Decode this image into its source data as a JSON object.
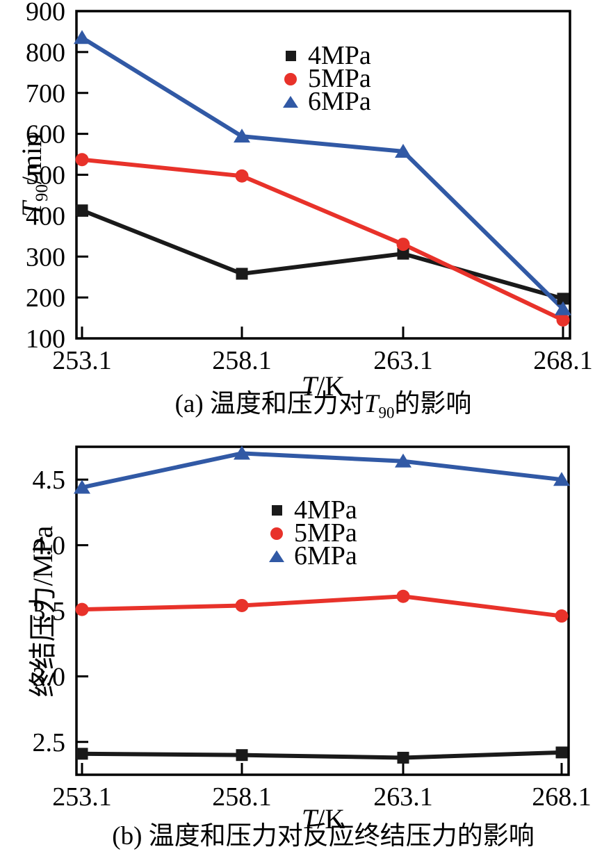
{
  "page": {
    "background": "#ffffff"
  },
  "colors": {
    "series_4mpa": "#1a1a1a",
    "series_5mpa": "#e8322a",
    "series_6mpa": "#3159a5",
    "axis": "#000000"
  },
  "chart_data": [
    {
      "type": "line",
      "panel": "a",
      "caption": "(a) 温度和压力对T90的影响",
      "caption_parts": {
        "prefix": "(a) 温度和压力对",
        "italic": "T",
        "sub": "90",
        "suffix": "的影响"
      },
      "xlabel": "T/K",
      "xlabel_parts": {
        "italic": "T",
        "rest": "/K"
      },
      "ylabel": "T90/min",
      "ylabel_parts": {
        "italic": "T",
        "sub": "90",
        "rest": "/min"
      },
      "categories": [
        "253.1",
        "258.1",
        "263.1",
        "268.1"
      ],
      "x_values": [
        253.1,
        258.1,
        263.1,
        268.1
      ],
      "ylim": [
        100,
        900
      ],
      "yticks": [
        100,
        200,
        300,
        400,
        500,
        600,
        700,
        800,
        900
      ],
      "ytick_decimals": 0,
      "grid": false,
      "legend_position": "upper-center-right",
      "series": [
        {
          "name": "4MPa",
          "color": "#1a1a1a",
          "marker": "square",
          "values": [
            413,
            258,
            307,
            197
          ]
        },
        {
          "name": "5MPa",
          "color": "#e8322a",
          "marker": "circle",
          "values": [
            537,
            497,
            330,
            145
          ]
        },
        {
          "name": "6MPa",
          "color": "#3159a5",
          "marker": "triangle",
          "values": [
            835,
            594,
            557,
            172
          ]
        }
      ]
    },
    {
      "type": "line",
      "panel": "b",
      "caption": "(b) 温度和压力对反应终结压力的影响",
      "caption_parts": {
        "prefix": "(b) 温度和压力对反应终结压力的影响",
        "italic": "",
        "sub": "",
        "suffix": ""
      },
      "xlabel": "T/K",
      "xlabel_parts": {
        "italic": "T",
        "rest": "/K"
      },
      "ylabel": "终结压力/MPa",
      "ylabel_parts": {
        "italic": "",
        "sub": "",
        "rest": "终结压力/MPa"
      },
      "categories": [
        "253.1",
        "258.1",
        "263.1",
        "268.1"
      ],
      "x_values": [
        253.1,
        258.1,
        263.1,
        268.1
      ],
      "ylim": [
        2.25,
        4.75
      ],
      "yticks": [
        2.5,
        3.0,
        3.5,
        4.0,
        4.5
      ],
      "ytick_decimals": 1,
      "grid": false,
      "legend_position": "center-right-of-middle",
      "series": [
        {
          "name": "4MPa",
          "color": "#1a1a1a",
          "marker": "square",
          "values": [
            2.41,
            2.4,
            2.38,
            2.42
          ]
        },
        {
          "name": "5MPa",
          "color": "#e8322a",
          "marker": "circle",
          "values": [
            3.51,
            3.54,
            3.61,
            3.46
          ]
        },
        {
          "name": "6MPa",
          "color": "#3159a5",
          "marker": "triangle",
          "values": [
            4.44,
            4.7,
            4.64,
            4.5
          ]
        }
      ]
    }
  ]
}
